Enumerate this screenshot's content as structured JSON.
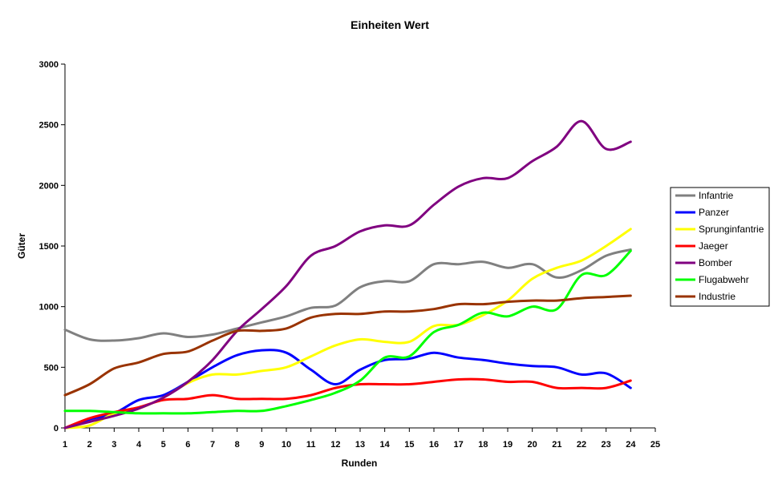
{
  "chart_data": {
    "type": "line",
    "title": "Einheiten Wert",
    "xlabel": "Runden",
    "ylabel": "Güter",
    "xlim": [
      1,
      25
    ],
    "ylim": [
      0,
      3000
    ],
    "x_ticks": [
      1,
      2,
      3,
      4,
      5,
      6,
      7,
      8,
      9,
      10,
      11,
      12,
      13,
      14,
      15,
      16,
      17,
      18,
      19,
      20,
      21,
      22,
      23,
      24,
      25
    ],
    "y_ticks": [
      0,
      500,
      1000,
      1500,
      2000,
      2500,
      3000
    ],
    "grid": false,
    "legend_position": "right",
    "x": [
      1,
      2,
      3,
      4,
      5,
      6,
      7,
      8,
      9,
      10,
      11,
      12,
      13,
      14,
      15,
      16,
      17,
      18,
      19,
      20,
      21,
      22,
      23,
      24
    ],
    "series": [
      {
        "name": "Infantrie",
        "color": "#808080",
        "values": [
          810,
          730,
          720,
          740,
          780,
          750,
          770,
          820,
          870,
          920,
          990,
          1010,
          1160,
          1210,
          1210,
          1350,
          1350,
          1370,
          1320,
          1350,
          1240,
          1300,
          1420,
          1470
        ]
      },
      {
        "name": "Panzer",
        "color": "#0000ff",
        "values": [
          0,
          70,
          120,
          230,
          270,
          380,
          500,
          600,
          640,
          620,
          480,
          360,
          480,
          560,
          570,
          620,
          580,
          560,
          530,
          510,
          500,
          440,
          450,
          330
        ]
      },
      {
        "name": "Sprunginfantrie",
        "color": "#ffff00",
        "values": [
          0,
          20,
          120,
          160,
          250,
          370,
          440,
          440,
          470,
          500,
          590,
          680,
          730,
          710,
          710,
          840,
          850,
          930,
          1050,
          1230,
          1320,
          1380,
          1500,
          1640
        ]
      },
      {
        "name": "Jaeger",
        "color": "#ff0000",
        "values": [
          0,
          80,
          130,
          170,
          230,
          240,
          270,
          240,
          240,
          240,
          270,
          330,
          360,
          360,
          360,
          380,
          400,
          400,
          380,
          380,
          330,
          330,
          330,
          390
        ]
      },
      {
        "name": "Bomber",
        "color": "#800080",
        "values": [
          0,
          50,
          100,
          160,
          250,
          380,
          560,
          800,
          980,
          1170,
          1420,
          1500,
          1620,
          1670,
          1670,
          1840,
          1990,
          2060,
          2060,
          2200,
          2320,
          2530,
          2300,
          2360
        ]
      },
      {
        "name": "Flugabwehr",
        "color": "#00ff00",
        "values": [
          140,
          140,
          130,
          120,
          120,
          120,
          130,
          140,
          140,
          180,
          230,
          290,
          390,
          580,
          590,
          790,
          850,
          950,
          920,
          1000,
          980,
          1260,
          1260,
          1460
        ]
      },
      {
        "name": "Industrie",
        "color": "#993300",
        "values": [
          270,
          360,
          490,
          540,
          610,
          630,
          720,
          800,
          800,
          820,
          910,
          940,
          940,
          960,
          960,
          980,
          1020,
          1020,
          1040,
          1050,
          1050,
          1070,
          1080,
          1090
        ]
      }
    ]
  }
}
